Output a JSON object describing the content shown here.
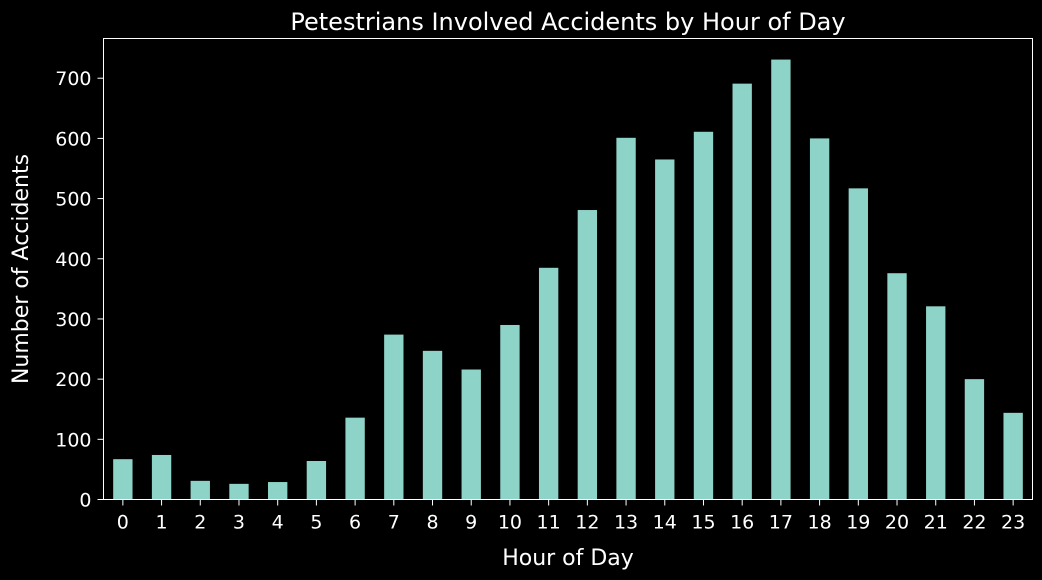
{
  "chart_data": {
    "type": "bar",
    "title": "Petestrians Involved Accidents by Hour of Day",
    "xlabel": "Hour of Day",
    "ylabel": "Number of Accidents",
    "categories": [
      "0",
      "1",
      "2",
      "3",
      "4",
      "5",
      "6",
      "7",
      "8",
      "9",
      "10",
      "11",
      "12",
      "13",
      "14",
      "15",
      "16",
      "17",
      "18",
      "19",
      "20",
      "21",
      "22",
      "23"
    ],
    "values": [
      67,
      74,
      31,
      26,
      29,
      64,
      136,
      274,
      247,
      216,
      290,
      385,
      481,
      601,
      565,
      611,
      691,
      731,
      600,
      517,
      376,
      321,
      200,
      144
    ],
    "ylim": [
      0,
      766
    ],
    "yticks": [
      0,
      100,
      200,
      300,
      400,
      500,
      600,
      700
    ],
    "grid": false,
    "legend": "none",
    "colors": {
      "bar": "#8dd3c7",
      "background": "#000000",
      "text": "#ffffff",
      "axes": "#ffffff"
    }
  }
}
